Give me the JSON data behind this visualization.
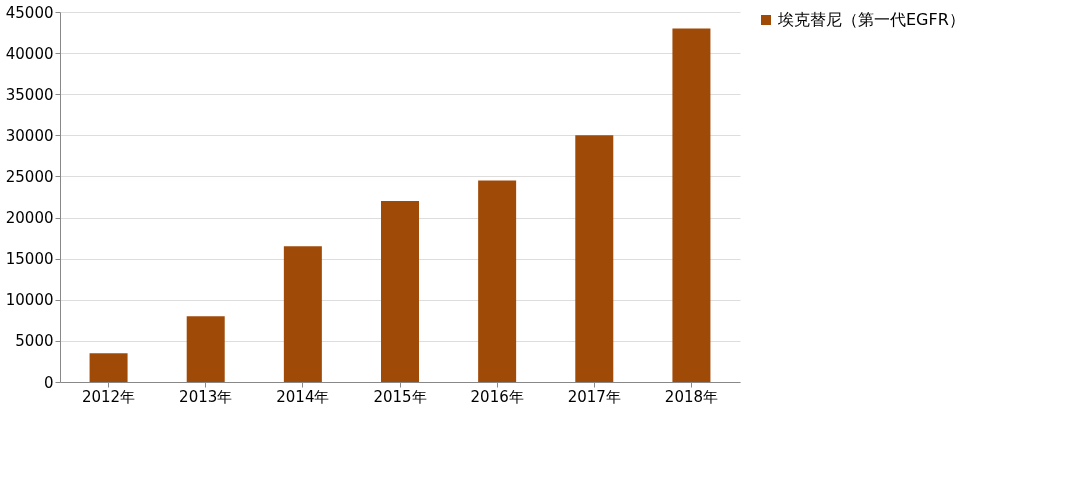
{
  "chart_data": {
    "type": "bar",
    "categories": [
      "2012年",
      "2013年",
      "2014年",
      "2015年",
      "2016年",
      "2017年",
      "2018年"
    ],
    "series": [
      {
        "name": "埃克替尼（第一代EGFR）",
        "color": "#a04a08",
        "values": [
          3500,
          8000,
          16500,
          22000,
          24500,
          30000,
          43000
        ]
      }
    ],
    "ylim": [
      0,
      45000
    ],
    "yticks": [
      0,
      5000,
      10000,
      15000,
      20000,
      25000,
      30000,
      35000,
      40000,
      45000
    ],
    "grid": "y",
    "legend": "right"
  }
}
